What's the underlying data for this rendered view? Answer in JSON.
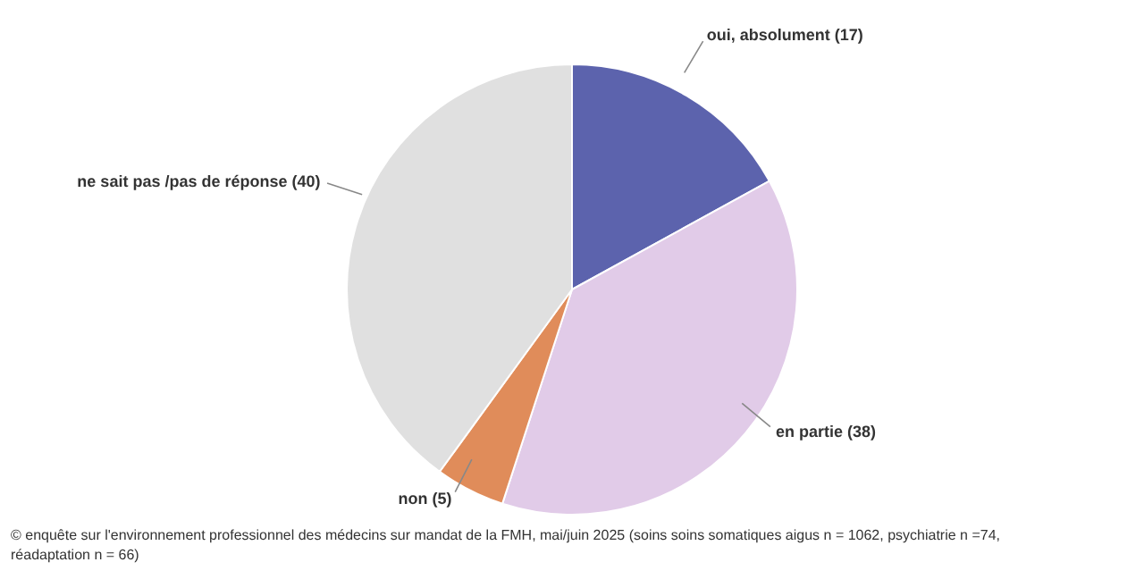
{
  "chart_data": {
    "type": "pie",
    "categories": [
      "oui, absolument",
      "en partie",
      "non",
      "ne sait pas /pas de réponse"
    ],
    "values": [
      17,
      38,
      5,
      40
    ],
    "value_labels": [
      "(17)",
      "(38)",
      "(5)",
      "(40)"
    ],
    "colors": [
      "#5c63ad",
      "#e1cbe8",
      "#e08c5a",
      "#e0e0e0"
    ],
    "annotations": [
      "© enquête sur l'environnement professionnel des médecins sur mandat de la FMH, mai/juin 2025 (soins soins somatiques aigus n = 1062, psychiatrie n =74, réadaptation n = 66)"
    ]
  }
}
